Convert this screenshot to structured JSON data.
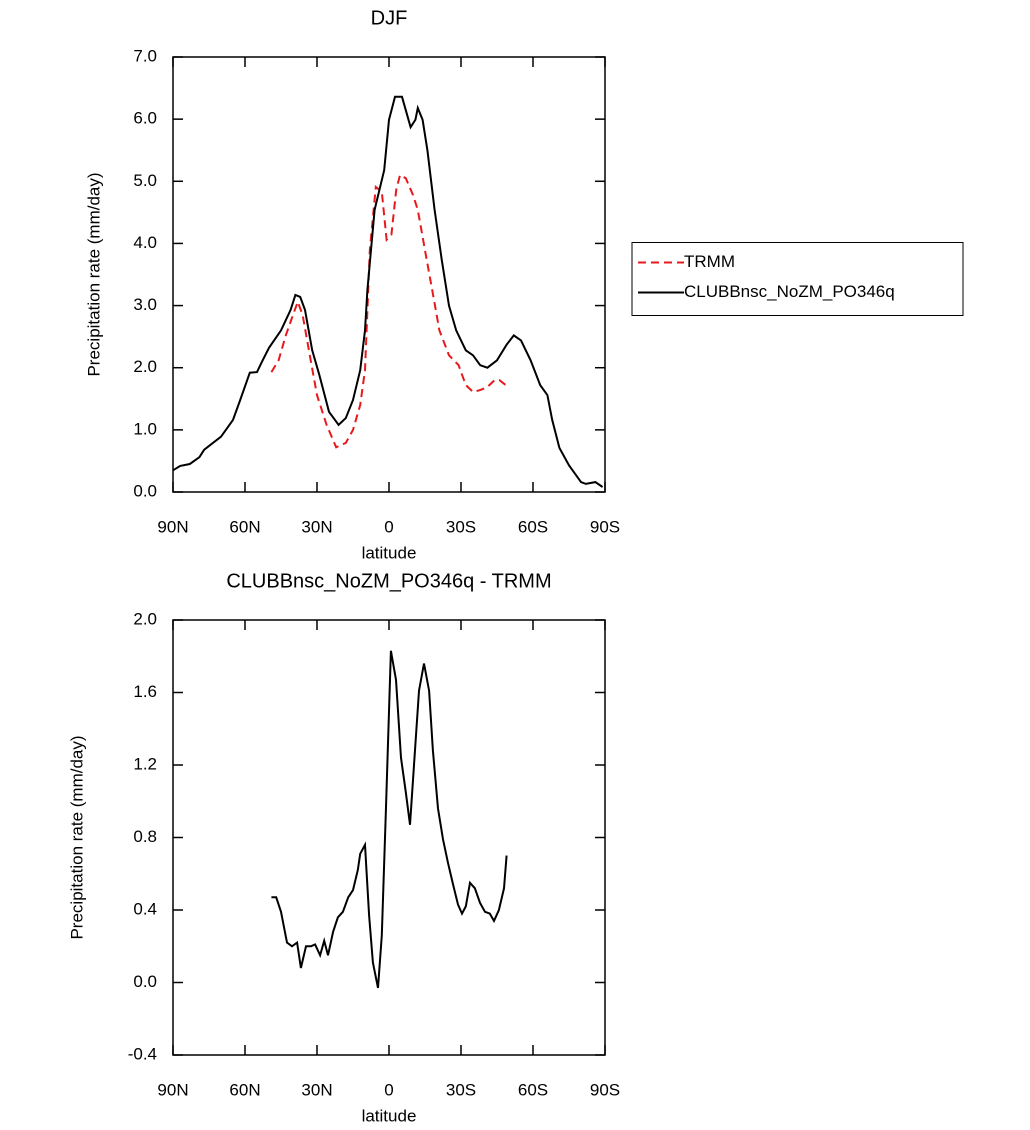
{
  "chart_data": [
    {
      "type": "line",
      "title": "DJF",
      "xlabel": "latitude",
      "ylabel": "Precipitation rate (mm/day)",
      "xlim": [
        90,
        -90
      ],
      "xticks": [
        {
          "value": 90,
          "label": "90N"
        },
        {
          "value": 60,
          "label": "60N"
        },
        {
          "value": 30,
          "label": "30N"
        },
        0,
        {
          "value": -30,
          "label": "30S"
        },
        {
          "value": -60,
          "label": "60S"
        },
        {
          "value": -90,
          "label": "90S"
        }
      ],
      "ylim": [
        0,
        7
      ],
      "yticks": [
        {
          "value": 0,
          "label": "0.0"
        },
        {
          "value": 1,
          "label": "1.0"
        },
        {
          "value": 2,
          "label": "2.0"
        },
        {
          "value": 3,
          "label": "3.0"
        },
        {
          "value": 4,
          "label": "4.0"
        },
        {
          "value": 5,
          "label": "5.0"
        },
        {
          "value": 6,
          "label": "6.0"
        },
        {
          "value": 7,
          "label": "7.0"
        }
      ],
      "legend": "right",
      "series": [
        {
          "name": "TRMM",
          "color": "#e8191c",
          "linestyle": "dashed",
          "x": [
            49,
            46,
            43,
            40,
            38,
            36,
            33,
            30,
            26,
            22,
            18,
            15,
            12,
            10,
            8,
            5.5,
            3,
            1,
            -1,
            -3,
            -4.6,
            -7,
            -10,
            -12,
            -15,
            -18,
            -21,
            -25,
            -29,
            -32,
            -35,
            -38,
            -41,
            -44,
            -46,
            -49
          ],
          "values": [
            1.93,
            2.12,
            2.52,
            2.85,
            3.06,
            2.85,
            2.2,
            1.56,
            1.08,
            0.72,
            0.79,
            1.0,
            1.4,
            1.96,
            3.89,
            4.91,
            4.83,
            4.06,
            4.14,
            4.86,
            5.1,
            5.05,
            4.78,
            4.54,
            3.89,
            3.25,
            2.6,
            2.2,
            2.04,
            1.72,
            1.61,
            1.64,
            1.69,
            1.8,
            1.8,
            1.71
          ]
        },
        {
          "name": "CLUBBnsc_NoZM_PO346q",
          "color": "#000000",
          "linestyle": "solid",
          "x": [
            90,
            87,
            83,
            79,
            77,
            70,
            65,
            62,
            58,
            55,
            53,
            50,
            45,
            41,
            39,
            37,
            35,
            32,
            29,
            25,
            21,
            18,
            15,
            12,
            10,
            9,
            6,
            4,
            2,
            0,
            -2.5,
            -5.4,
            -9,
            -11,
            -12,
            -14,
            -16,
            -19,
            -22,
            -25,
            -28,
            -32,
            -35,
            -38,
            -41,
            -45,
            -49,
            -52,
            -55,
            -59,
            -63,
            -66,
            -68,
            -71,
            -75,
            -80,
            -82,
            -86,
            -89
          ],
          "values": [
            0.35,
            0.42,
            0.45,
            0.56,
            0.68,
            0.89,
            1.16,
            1.48,
            1.92,
            1.93,
            2.09,
            2.32,
            2.6,
            2.93,
            3.17,
            3.14,
            2.93,
            2.28,
            1.88,
            1.29,
            1.08,
            1.19,
            1.48,
            1.96,
            2.6,
            3.25,
            4.54,
            4.86,
            5.18,
            5.99,
            6.36,
            6.36,
            5.87,
            5.99,
            6.18,
            5.99,
            5.5,
            4.54,
            3.73,
            3.0,
            2.6,
            2.28,
            2.2,
            2.04,
            2.0,
            2.12,
            2.37,
            2.52,
            2.44,
            2.12,
            1.72,
            1.56,
            1.16,
            0.71,
            0.43,
            0.16,
            0.13,
            0.16,
            0.08
          ]
        }
      ]
    },
    {
      "type": "line",
      "title": "CLUBBnsc_NoZM_PO346q - TRMM",
      "xlabel": "latitude",
      "ylabel": "Precipitation rate (mm/day)",
      "xlim": [
        90,
        -90
      ],
      "xticks": [
        {
          "value": 90,
          "label": "90N"
        },
        {
          "value": 60,
          "label": "60N"
        },
        {
          "value": 30,
          "label": "30N"
        },
        0,
        {
          "value": -30,
          "label": "30S"
        },
        {
          "value": -60,
          "label": "60S"
        },
        {
          "value": -90,
          "label": "90S"
        }
      ],
      "ylim": [
        -0.4,
        2.0
      ],
      "yticks": [
        -0.4,
        {
          "value": 0,
          "label": "0.0"
        },
        0.4,
        0.8,
        1.2,
        1.6,
        {
          "value": 2,
          "label": "2.0"
        }
      ],
      "series": [
        {
          "color": "#000000",
          "linestyle": "solid",
          "x": [
            49,
            47,
            45,
            42.5,
            40.4,
            38.3,
            36.7,
            34.6,
            32.5,
            30.8,
            28.7,
            27,
            25.4,
            23.3,
            21.3,
            19.2,
            17,
            15,
            13,
            12,
            10,
            8.3,
            6.7,
            4.6,
            3,
            1.3,
            -0.8,
            -2.9,
            -5,
            -7,
            -8.75,
            -10.4,
            -12.5,
            -14.6,
            -16.7,
            -18.3,
            -20.4,
            -22.5,
            -24.6,
            -26.7,
            -28.75,
            -30.4,
            -32,
            -33.75,
            -35.8,
            -37.9,
            -40,
            -42,
            -43.75,
            -45.8,
            -47.9,
            -49
          ],
          "values": [
            0.47,
            0.47,
            0.39,
            0.22,
            0.2,
            0.22,
            0.08,
            0.2,
            0.2,
            0.21,
            0.15,
            0.23,
            0.15,
            0.28,
            0.36,
            0.39,
            0.47,
            0.51,
            0.62,
            0.71,
            0.76,
            0.37,
            0.11,
            -0.03,
            0.26,
            0.95,
            1.83,
            1.67,
            1.24,
            1.05,
            0.87,
            1.2,
            1.61,
            1.76,
            1.61,
            1.28,
            0.96,
            0.79,
            0.66,
            0.54,
            0.43,
            0.38,
            0.42,
            0.55,
            0.52,
            0.44,
            0.39,
            0.38,
            0.34,
            0.4,
            0.52,
            0.7
          ]
        }
      ]
    }
  ]
}
